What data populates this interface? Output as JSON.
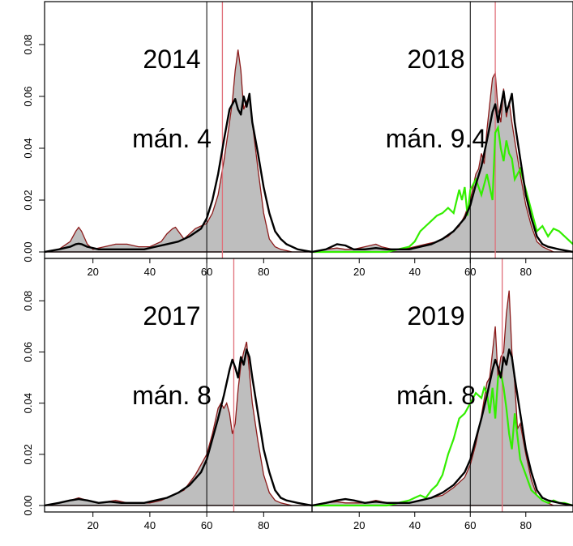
{
  "chart_data": {
    "type": "area",
    "layout": "2x2 panel grid, shared y axis on left, shared x ticks below each row",
    "xlim": [
      3,
      97
    ],
    "ylim": [
      0,
      0.095
    ],
    "x_ticks": [
      20,
      40,
      60,
      80
    ],
    "y_ticks": [
      0.0,
      0.02,
      0.04,
      0.06,
      0.08
    ],
    "y_tick_labels": [
      "0.00",
      "0.02",
      "0.04",
      "0.06",
      "0.08"
    ],
    "x_tick_labels": [
      "20",
      "40",
      "60",
      "80"
    ],
    "grid": false,
    "colors": {
      "fill": "#bebebe",
      "fill_outline": "#8b1a1a",
      "overall_density": "#000000",
      "green_density": "#33ee00",
      "reference_line": "#000000",
      "mean_line": "#e0707a"
    },
    "panels": [
      {
        "position": "top-left",
        "year_label": "2014",
        "month_label": "mán. 4",
        "reference_x": 60,
        "mean_x": 65.5,
        "fill_density": {
          "x": [
            3,
            8,
            12,
            14,
            15,
            16,
            18,
            20,
            24,
            28,
            32,
            36,
            40,
            44,
            46,
            48,
            49,
            50,
            52,
            54,
            56,
            58,
            60,
            62,
            64,
            66,
            68,
            69,
            70,
            71,
            72,
            73,
            74,
            75,
            76,
            78,
            80,
            82,
            84,
            86,
            90,
            97
          ],
          "y": [
            0,
            0.001,
            0.004,
            0.008,
            0.0095,
            0.008,
            0.003,
            0.001,
            0.002,
            0.003,
            0.003,
            0.002,
            0.002,
            0.004,
            0.007,
            0.009,
            0.0095,
            0.008,
            0.005,
            0.007,
            0.009,
            0.01,
            0.011,
            0.015,
            0.022,
            0.035,
            0.05,
            0.058,
            0.07,
            0.078,
            0.07,
            0.055,
            0.058,
            0.06,
            0.05,
            0.032,
            0.015,
            0.005,
            0.002,
            0.001,
            0,
            0
          ]
        },
        "overall_density": {
          "x": [
            3,
            8,
            12,
            14,
            15,
            16,
            18,
            22,
            26,
            30,
            34,
            38,
            42,
            46,
            50,
            54,
            58,
            60,
            62,
            64,
            66,
            68,
            70,
            71,
            72,
            73,
            74,
            75,
            76,
            78,
            80,
            82,
            84,
            86,
            88,
            92,
            97
          ],
          "y": [
            0,
            0.001,
            0.002,
            0.003,
            0.0032,
            0.003,
            0.002,
            0.001,
            0.001,
            0.001,
            0.001,
            0.001,
            0.002,
            0.003,
            0.004,
            0.006,
            0.009,
            0.013,
            0.02,
            0.03,
            0.043,
            0.055,
            0.059,
            0.055,
            0.053,
            0.06,
            0.056,
            0.061,
            0.05,
            0.038,
            0.025,
            0.015,
            0.008,
            0.005,
            0.003,
            0.001,
            0
          ]
        }
      },
      {
        "position": "top-right",
        "year_label": "2018",
        "month_label": "mán. 9.4",
        "reference_x": 60,
        "mean_x": 69,
        "fill_density": {
          "x": [
            3,
            8,
            12,
            15,
            18,
            22,
            26,
            28,
            32,
            36,
            40,
            44,
            48,
            52,
            56,
            58,
            60,
            62,
            63,
            64,
            65,
            66,
            68,
            69,
            70,
            71,
            72,
            73,
            74,
            75,
            76,
            78,
            80,
            82,
            84,
            86,
            90,
            97
          ],
          "y": [
            0,
            0.001,
            0.0015,
            0.001,
            0.001,
            0.002,
            0.003,
            0.002,
            0.001,
            0.001,
            0.002,
            0.003,
            0.004,
            0.006,
            0.01,
            0.014,
            0.02,
            0.03,
            0.032,
            0.038,
            0.034,
            0.047,
            0.067,
            0.069,
            0.055,
            0.05,
            0.063,
            0.052,
            0.058,
            0.05,
            0.043,
            0.03,
            0.018,
            0.01,
            0.004,
            0.002,
            0,
            0
          ]
        },
        "overall_density": {
          "x": [
            3,
            8,
            12,
            15,
            18,
            22,
            26,
            30,
            34,
            38,
            42,
            46,
            50,
            54,
            58,
            60,
            62,
            64,
            66,
            68,
            69,
            70,
            71,
            72,
            73,
            74,
            75,
            76,
            78,
            80,
            82,
            84,
            86,
            88,
            92,
            97
          ],
          "y": [
            0,
            0.001,
            0.003,
            0.0025,
            0.001,
            0.001,
            0.0015,
            0.001,
            0.001,
            0.001,
            0.002,
            0.003,
            0.005,
            0.008,
            0.013,
            0.018,
            0.026,
            0.033,
            0.043,
            0.054,
            0.057,
            0.05,
            0.056,
            0.062,
            0.054,
            0.057,
            0.061,
            0.05,
            0.036,
            0.022,
            0.013,
            0.006,
            0.003,
            0.002,
            0.001,
            0
          ]
        },
        "green_density": {
          "x": [
            3,
            10,
            20,
            30,
            38,
            40,
            42,
            44,
            46,
            48,
            50,
            52,
            54,
            56,
            57,
            58,
            59,
            60,
            62,
            64,
            66,
            68,
            69,
            70,
            71,
            72,
            73,
            74,
            75,
            76,
            78,
            80,
            82,
            84,
            86,
            88,
            90,
            92,
            94,
            97
          ],
          "y": [
            0,
            0,
            0,
            0,
            0.002,
            0.004,
            0.008,
            0.01,
            0.012,
            0.014,
            0.015,
            0.017,
            0.015,
            0.024,
            0.02,
            0.025,
            0.014,
            0.024,
            0.028,
            0.022,
            0.03,
            0.02,
            0.046,
            0.048,
            0.04,
            0.035,
            0.043,
            0.038,
            0.036,
            0.028,
            0.032,
            0.024,
            0.016,
            0.008,
            0.01,
            0.006,
            0.009,
            0.008,
            0.006,
            0.003
          ]
        }
      },
      {
        "position": "bottom-left",
        "year_label": "2017",
        "month_label": "mán. 8",
        "reference_x": 60,
        "mean_x": 69.5,
        "fill_density": {
          "x": [
            3,
            8,
            12,
            15,
            18,
            22,
            28,
            32,
            36,
            40,
            44,
            48,
            52,
            54,
            56,
            58,
            60,
            62,
            64,
            65,
            66,
            67,
            68,
            69,
            70,
            71,
            72,
            73,
            74,
            75,
            76,
            78,
            80,
            82,
            84,
            86,
            90,
            97
          ],
          "y": [
            0,
            0.001,
            0.002,
            0.003,
            0.002,
            0.001,
            0.002,
            0.001,
            0.001,
            0.001,
            0.002,
            0.004,
            0.006,
            0.009,
            0.012,
            0.016,
            0.02,
            0.028,
            0.038,
            0.04,
            0.038,
            0.04,
            0.036,
            0.028,
            0.032,
            0.045,
            0.055,
            0.06,
            0.064,
            0.052,
            0.04,
            0.025,
            0.012,
            0.005,
            0.002,
            0.001,
            0,
            0
          ]
        },
        "overall_density": {
          "x": [
            3,
            8,
            12,
            15,
            18,
            22,
            26,
            30,
            34,
            38,
            42,
            46,
            50,
            54,
            58,
            60,
            62,
            64,
            66,
            68,
            69,
            70,
            71,
            72,
            73,
            74,
            75,
            76,
            78,
            80,
            82,
            84,
            86,
            88,
            92,
            97
          ],
          "y": [
            0,
            0.001,
            0.002,
            0.0025,
            0.002,
            0.001,
            0.0015,
            0.001,
            0.001,
            0.001,
            0.002,
            0.003,
            0.005,
            0.008,
            0.013,
            0.018,
            0.026,
            0.034,
            0.043,
            0.053,
            0.057,
            0.054,
            0.05,
            0.058,
            0.055,
            0.061,
            0.058,
            0.05,
            0.036,
            0.022,
            0.013,
            0.006,
            0.003,
            0.002,
            0.001,
            0
          ]
        }
      },
      {
        "position": "bottom-right",
        "year_label": "2019",
        "month_label": "mán. 8",
        "reference_x": 60,
        "mean_x": 71.5,
        "fill_density": {
          "x": [
            3,
            8,
            12,
            15,
            18,
            22,
            26,
            30,
            34,
            38,
            42,
            46,
            50,
            54,
            58,
            60,
            62,
            64,
            66,
            67,
            68,
            69,
            70,
            71,
            72,
            73,
            74,
            75,
            76,
            77,
            78,
            80,
            82,
            84,
            86,
            90,
            97
          ],
          "y": [
            0,
            0.001,
            0.0015,
            0.001,
            0.001,
            0.001,
            0.002,
            0.001,
            0.001,
            0.001,
            0.002,
            0.003,
            0.004,
            0.007,
            0.011,
            0.016,
            0.024,
            0.035,
            0.048,
            0.05,
            0.06,
            0.07,
            0.05,
            0.058,
            0.06,
            0.075,
            0.084,
            0.06,
            0.048,
            0.03,
            0.032,
            0.02,
            0.01,
            0.004,
            0.002,
            0,
            0
          ]
        },
        "overall_density": {
          "x": [
            3,
            8,
            12,
            15,
            18,
            22,
            26,
            30,
            34,
            38,
            42,
            46,
            50,
            54,
            58,
            60,
            62,
            64,
            66,
            68,
            69,
            70,
            71,
            72,
            73,
            74,
            75,
            76,
            78,
            80,
            82,
            84,
            86,
            88,
            92,
            97
          ],
          "y": [
            0,
            0.001,
            0.002,
            0.0025,
            0.002,
            0.001,
            0.0015,
            0.001,
            0.001,
            0.001,
            0.002,
            0.003,
            0.005,
            0.008,
            0.013,
            0.018,
            0.026,
            0.034,
            0.043,
            0.053,
            0.057,
            0.054,
            0.05,
            0.058,
            0.055,
            0.061,
            0.058,
            0.05,
            0.036,
            0.022,
            0.013,
            0.006,
            0.003,
            0.002,
            0.001,
            0
          ]
        },
        "green_density": {
          "x": [
            3,
            10,
            20,
            30,
            38,
            40,
            42,
            44,
            46,
            48,
            50,
            52,
            54,
            56,
            58,
            60,
            62,
            64,
            65,
            66,
            67,
            68,
            69,
            70,
            71,
            72,
            73,
            74,
            75,
            76,
            78,
            80,
            82,
            84,
            86,
            88,
            90,
            92,
            94,
            97
          ],
          "y": [
            0,
            0,
            0,
            0,
            0.002,
            0.003,
            0.004,
            0.003,
            0.006,
            0.008,
            0.012,
            0.02,
            0.026,
            0.034,
            0.036,
            0.04,
            0.044,
            0.042,
            0.046,
            0.044,
            0.036,
            0.046,
            0.034,
            0.05,
            0.052,
            0.046,
            0.038,
            0.028,
            0.022,
            0.036,
            0.018,
            0.012,
            0.006,
            0.004,
            0.002,
            0.001,
            0.002,
            0.001,
            0.001,
            0
          ]
        }
      }
    ]
  }
}
